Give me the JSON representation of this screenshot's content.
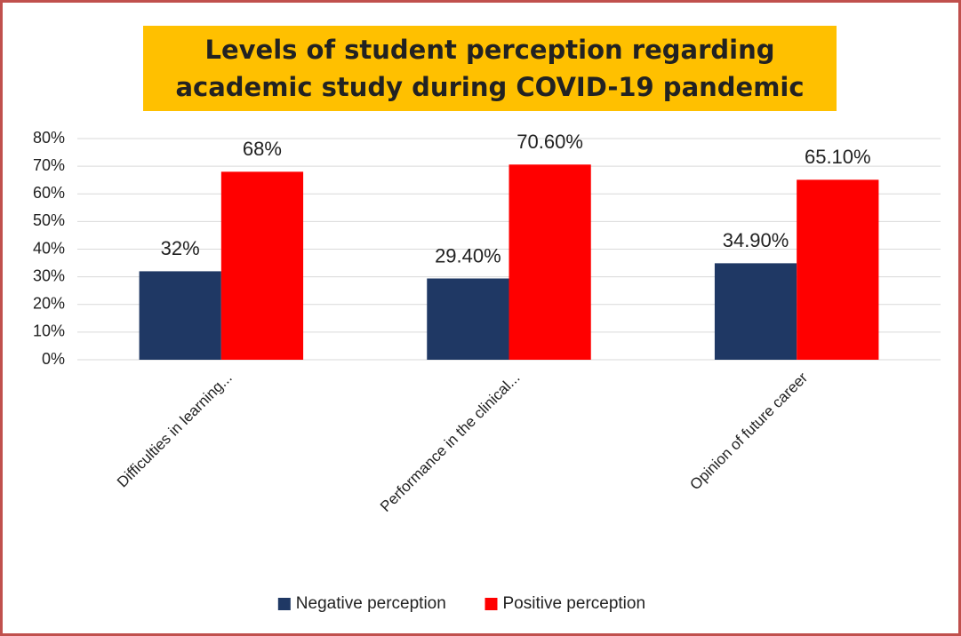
{
  "chart_data": {
    "type": "bar",
    "title": "Levels  of student perception  regarding academic study during COVID-19 pandemic",
    "categories": [
      "Difficulties in learning...",
      "Performance in the clinical...",
      "Opinion of future career"
    ],
    "series": [
      {
        "name": "Negative perception",
        "color": "#1f3864",
        "values": [
          32,
          29.4,
          34.9
        ],
        "value_labels": [
          "32%",
          "29.40%",
          "34.90%"
        ]
      },
      {
        "name": "Positive perception",
        "color": "#ff0000",
        "values": [
          68,
          70.6,
          65.1
        ],
        "value_labels": [
          "68%",
          "70.60%",
          "65.10%"
        ]
      }
    ],
    "ylim": [
      0,
      80
    ],
    "yticks": [
      {
        "value": 0,
        "label": "0%"
      },
      {
        "value": 10,
        "label": "10%"
      },
      {
        "value": 20,
        "label": "20%"
      },
      {
        "value": 30,
        "label": "30%"
      },
      {
        "value": 40,
        "label": "40%"
      },
      {
        "value": 50,
        "label": "50%"
      },
      {
        "value": 60,
        "label": "60%"
      },
      {
        "value": 70,
        "label": "70%"
      },
      {
        "value": 80,
        "label": "80%"
      }
    ],
    "grid": true,
    "legend": "bottom"
  }
}
